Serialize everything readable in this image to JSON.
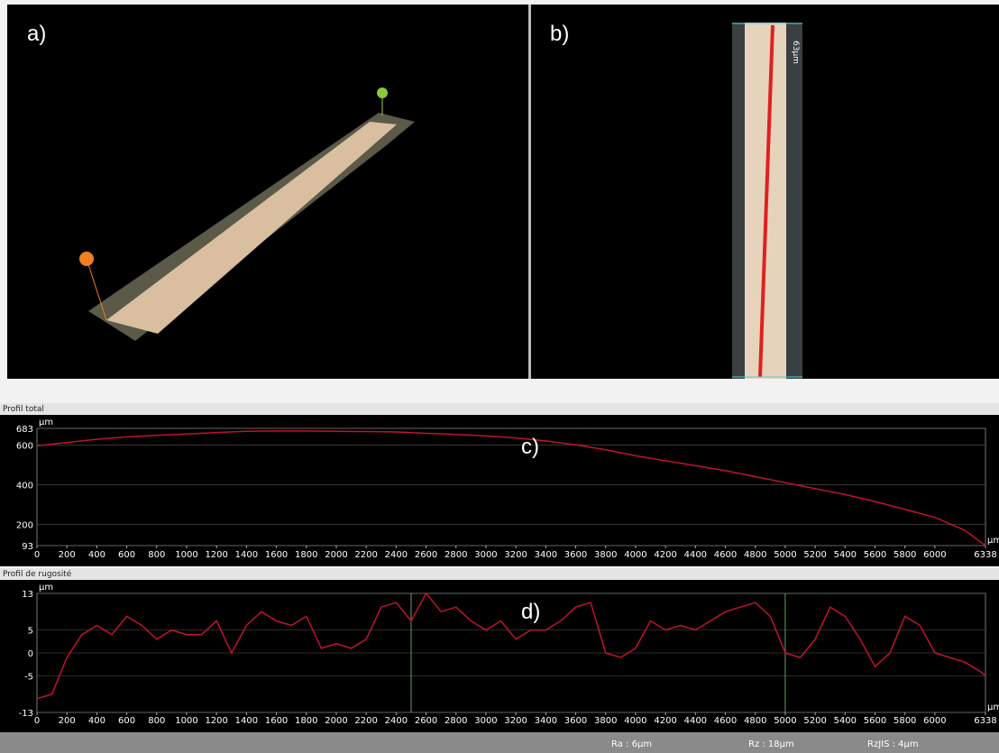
{
  "panels": {
    "a": {
      "label": "a)"
    },
    "b": {
      "label": "b)",
      "scale_label": "63µm"
    }
  },
  "chart_data": [
    {
      "type": "line",
      "header": "Profil total",
      "panel_label": "c)",
      "y_unit": "µm",
      "x_unit": "µm",
      "color": "#c0142a",
      "x": [
        0,
        200,
        400,
        600,
        800,
        1000,
        1200,
        1400,
        1600,
        1800,
        2000,
        2200,
        2400,
        2600,
        2800,
        3000,
        3200,
        3400,
        3600,
        3800,
        4000,
        4200,
        4400,
        4600,
        4800,
        5000,
        5200,
        5400,
        5600,
        5800,
        6000,
        6200,
        6338
      ],
      "values": [
        595,
        612,
        628,
        640,
        648,
        655,
        662,
        668,
        670,
        670,
        668,
        667,
        665,
        658,
        652,
        645,
        635,
        620,
        600,
        575,
        545,
        520,
        495,
        470,
        440,
        410,
        380,
        350,
        315,
        275,
        235,
        170,
        93
      ],
      "xlim": [
        0,
        6338
      ],
      "ylim": [
        93,
        683
      ],
      "xticks": [
        0,
        200,
        400,
        600,
        800,
        1000,
        1200,
        1400,
        1600,
        1800,
        2000,
        2200,
        2400,
        2600,
        2800,
        3000,
        3200,
        3400,
        3600,
        3800,
        4000,
        4200,
        4400,
        4600,
        4800,
        5000,
        5200,
        5400,
        5600,
        5800,
        6000,
        6338
      ],
      "yticks": [
        93,
        200,
        400,
        600,
        683
      ]
    },
    {
      "type": "line",
      "header": "Profil de rugosité",
      "panel_label": "d)",
      "y_unit": "µm",
      "x_unit": "µm",
      "color": "#c0142a",
      "x": [
        0,
        100,
        200,
        300,
        400,
        500,
        600,
        700,
        800,
        900,
        1000,
        1100,
        1200,
        1300,
        1400,
        1500,
        1600,
        1700,
        1800,
        1900,
        2000,
        2100,
        2200,
        2300,
        2400,
        2500,
        2600,
        2700,
        2800,
        2900,
        3000,
        3100,
        3200,
        3300,
        3400,
        3500,
        3600,
        3700,
        3800,
        3900,
        4000,
        4100,
        4200,
        4300,
        4400,
        4500,
        4600,
        4700,
        4800,
        4900,
        5000,
        5100,
        5200,
        5300,
        5400,
        5500,
        5600,
        5700,
        5800,
        5900,
        6000,
        6100,
        6200,
        6300,
        6338
      ],
      "values": [
        -10,
        -9,
        -1,
        4,
        6,
        4,
        8,
        6,
        3,
        5,
        4,
        4,
        7,
        0,
        6,
        9,
        7,
        6,
        8,
        1,
        2,
        1,
        3,
        10,
        11,
        7,
        13,
        9,
        10,
        7,
        5,
        7,
        3,
        5,
        5,
        7,
        10,
        11,
        0,
        -1,
        1,
        7,
        5,
        6,
        5,
        7,
        9,
        10,
        11,
        8,
        0,
        -1,
        3,
        10,
        8,
        3,
        -3,
        0,
        8,
        6,
        0,
        -1,
        -2,
        -4,
        -5
      ],
      "cursors": [
        2500,
        5000
      ],
      "xlim": [
        0,
        6338
      ],
      "ylim": [
        -13,
        13
      ],
      "xticks": [
        0,
        200,
        400,
        600,
        800,
        1000,
        1200,
        1400,
        1600,
        1800,
        2000,
        2200,
        2400,
        2600,
        2800,
        3000,
        3200,
        3400,
        3600,
        3800,
        4000,
        4200,
        4400,
        4600,
        4800,
        5000,
        5200,
        5400,
        5600,
        5800,
        6000,
        6338
      ],
      "yticks": [
        -13,
        -5,
        0,
        5,
        13
      ]
    }
  ],
  "footer": {
    "ra": "Ra : 6µm",
    "rz": "Rz : 18µm",
    "rzjis": "RzJIS : 4µm"
  }
}
